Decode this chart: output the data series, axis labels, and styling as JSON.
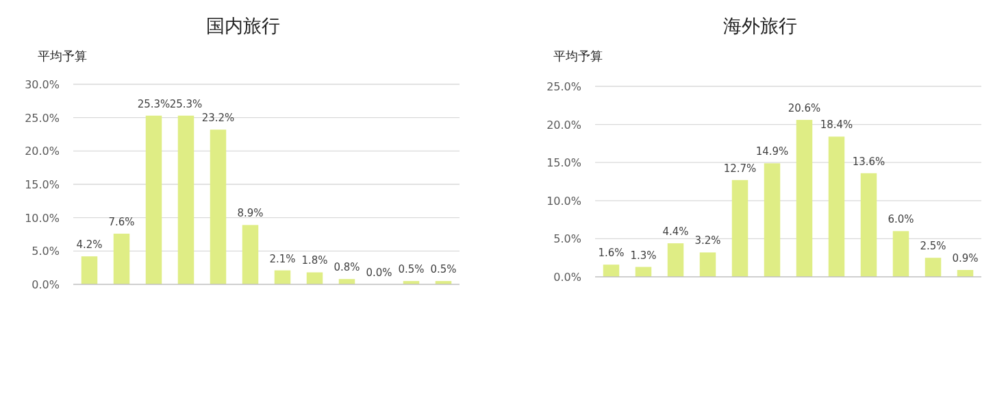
{
  "chart_data": [
    {
      "type": "bar",
      "title": "国内旅行",
      "ylabel": "平均予算",
      "categories": [
        null,
        null,
        null,
        null,
        null,
        null,
        null,
        null,
        null,
        null,
        null,
        null
      ],
      "values": [
        4.2,
        7.6,
        25.3,
        25.3,
        23.2,
        8.9,
        2.1,
        1.8,
        0.8,
        0.0,
        0.5,
        0.5
      ],
      "value_labels": [
        "4.2%",
        "7.6%",
        "25.3%",
        "25.3%",
        "23.2%",
        "8.9%",
        "2.1%",
        "1.8%",
        "0.8%",
        "0.0%",
        "0.5%",
        "0.5%"
      ],
      "color": "#dfed85",
      "ylim": [
        0,
        30
      ],
      "yticks": [
        {
          "value": 0,
          "label": "0.0%"
        },
        {
          "value": 5,
          "label": "5.0%"
        },
        {
          "value": 10,
          "label": "10.0%"
        },
        {
          "value": 15,
          "label": "15.0%"
        },
        {
          "value": 20,
          "label": "20.0%"
        },
        {
          "value": 25,
          "label": "25.0%"
        },
        {
          "value": 30,
          "label": "30.0%"
        }
      ],
      "grid": "y"
    },
    {
      "type": "bar",
      "title": "海外旅行",
      "ylabel": "平均予算",
      "categories": [
        null,
        null,
        null,
        null,
        null,
        null,
        null,
        null,
        null,
        null,
        null,
        null
      ],
      "values": [
        1.6,
        1.3,
        4.4,
        3.2,
        12.7,
        14.9,
        20.6,
        18.4,
        13.6,
        6.0,
        2.5,
        0.9
      ],
      "value_labels": [
        "1.6%",
        "1.3%",
        "4.4%",
        "3.2%",
        "12.7%",
        "14.9%",
        "20.6%",
        "18.4%",
        "13.6%",
        "6.0%",
        "2.5%",
        "0.9%"
      ],
      "color": "#dfed85",
      "ylim": [
        0,
        25
      ],
      "yticks": [
        {
          "value": 0,
          "label": "0.0%"
        },
        {
          "value": 5,
          "label": "5.0%"
        },
        {
          "value": 10,
          "label": "10.0%"
        },
        {
          "value": 15,
          "label": "15.0%"
        },
        {
          "value": 20,
          "label": "20.0%"
        },
        {
          "value": 25,
          "label": "25.0%"
        }
      ],
      "grid": "y"
    }
  ]
}
